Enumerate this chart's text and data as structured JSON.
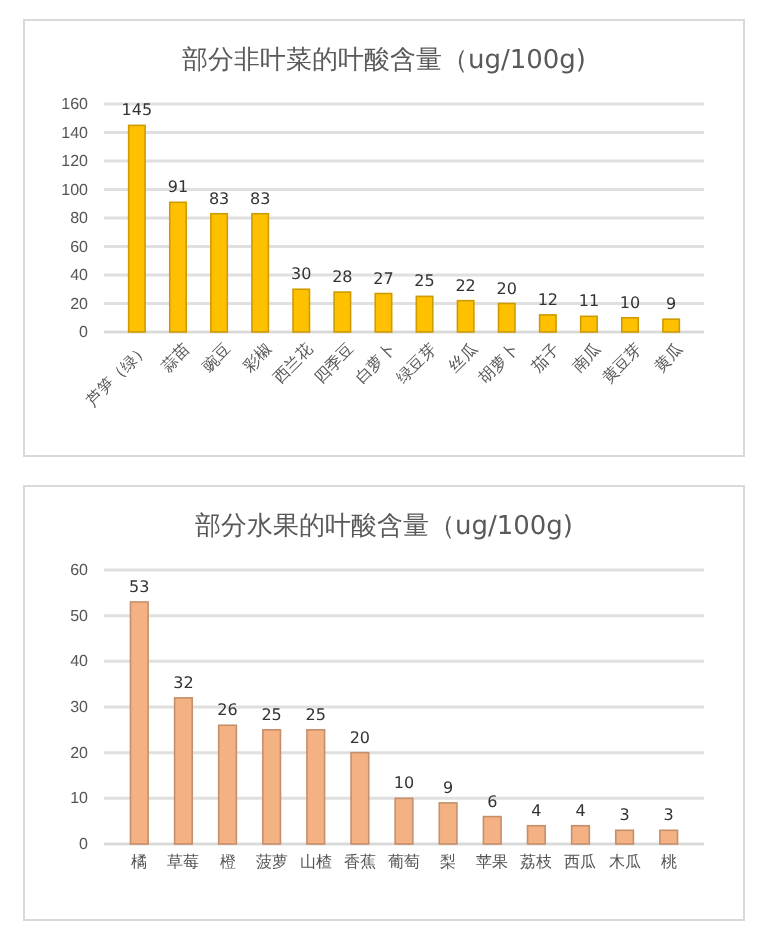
{
  "chart_data": [
    {
      "type": "bar",
      "title": "部分非叶菜的叶酸含量（ug/100g)",
      "categories": [
        "芦笋（绿）",
        "蒜苗",
        "豌豆",
        "彩椒",
        "西兰花",
        "四季豆",
        "白萝卜",
        "绿豆芽",
        "丝瓜",
        "胡萝卜",
        "茄子",
        "南瓜",
        "黄豆芽",
        "黄瓜"
      ],
      "values": [
        145,
        91,
        83,
        83,
        30,
        28,
        27,
        25,
        22,
        20,
        12,
        11,
        10,
        9
      ],
      "color": "#ffc000",
      "ylim": [
        0,
        160
      ],
      "yticks": [
        0,
        20,
        40,
        60,
        80,
        100,
        120,
        140,
        160
      ],
      "grid": "y",
      "data_labels": true
    },
    {
      "type": "bar",
      "title": "部分水果的叶酸含量（ug/100g)",
      "categories": [
        "橘",
        "草莓",
        "橙",
        "菠萝",
        "山楂",
        "香蕉",
        "葡萄",
        "梨",
        "苹果",
        "荔枝",
        "西瓜",
        "木瓜",
        "桃"
      ],
      "values": [
        53,
        32,
        26,
        25,
        25,
        20,
        10,
        9,
        6,
        4,
        4,
        3,
        3
      ],
      "color": "#f4b183",
      "ylim": [
        0,
        60
      ],
      "yticks": [
        0,
        10,
        20,
        30,
        40,
        50,
        60
      ],
      "grid": "y",
      "data_labels": true
    }
  ]
}
